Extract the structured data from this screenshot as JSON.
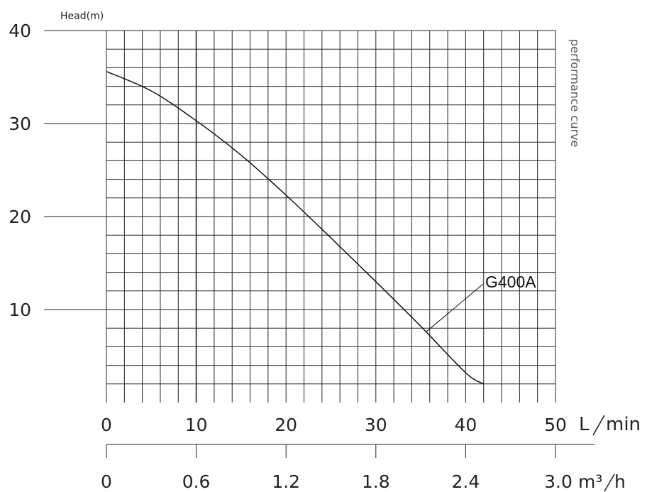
{
  "chart_data": {
    "type": "line",
    "title": "performance curve",
    "ylabel": "Head(m)",
    "xlabel": "L/min",
    "xlabel_secondary": "m³/h",
    "xlim": [
      0,
      50
    ],
    "ylim": [
      0,
      40
    ],
    "y_ticks": [
      "40",
      "30",
      "20",
      "10"
    ],
    "x_ticks": [
      "0",
      "10",
      "20",
      "30",
      "40",
      "50"
    ],
    "x2_ticks": [
      "0",
      "0.6",
      "1.2",
      "1.8",
      "2.4",
      "3.0"
    ],
    "grid": true,
    "series": [
      {
        "name": "G400A",
        "x": [
          0,
          5,
          10,
          15,
          20,
          25,
          30,
          35,
          40,
          42
        ],
        "y": [
          35.6,
          33.5,
          30.3,
          26.6,
          22.3,
          17.7,
          13.0,
          8.2,
          3.2,
          2.0
        ]
      }
    ]
  }
}
